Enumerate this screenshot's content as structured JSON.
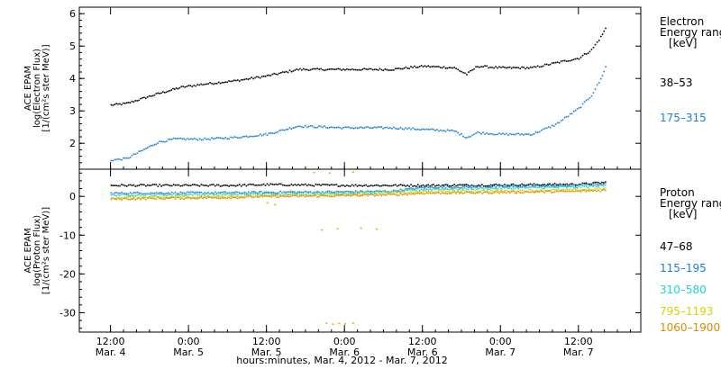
{
  "chart_data": [
    {
      "type": "scatter",
      "ylabel_lines": [
        "ACE EPAM",
        "log(Electron Flux)",
        "[1/(cm²s ster MeV)]"
      ],
      "ylim": [
        1.2,
        6.2
      ],
      "yticks": [
        2,
        3,
        4,
        5,
        6
      ],
      "xlim": [
        -0.2,
        3.4
      ],
      "legend": {
        "title_lines": [
          "Electron",
          "Energy range",
          "[keV]"
        ],
        "entries": [
          "38–53",
          "175–315"
        ]
      },
      "series": [
        {
          "name": "38–53",
          "color": "#000000",
          "points": [
            [
              0.0,
              3.2
            ],
            [
              0.1,
              3.25
            ],
            [
              0.2,
              3.4
            ],
            [
              0.3,
              3.55
            ],
            [
              0.45,
              3.75
            ],
            [
              0.6,
              3.85
            ],
            [
              0.8,
              3.95
            ],
            [
              1.0,
              4.1
            ],
            [
              1.2,
              4.3
            ],
            [
              1.5,
              4.3
            ],
            [
              1.8,
              4.3
            ],
            [
              2.0,
              4.4
            ],
            [
              2.2,
              4.35
            ],
            [
              2.28,
              4.15
            ],
            [
              2.35,
              4.4
            ],
            [
              2.5,
              4.35
            ],
            [
              2.7,
              4.35
            ],
            [
              2.85,
              4.5
            ],
            [
              3.0,
              4.65
            ],
            [
              3.08,
              4.9
            ],
            [
              3.14,
              5.3
            ],
            [
              3.18,
              5.65
            ]
          ]
        },
        {
          "name": "175–315",
          "color": "#1a7fd4",
          "points": [
            [
              0.0,
              1.5
            ],
            [
              0.1,
              1.55
            ],
            [
              0.2,
              1.8
            ],
            [
              0.3,
              2.05
            ],
            [
              0.4,
              2.15
            ],
            [
              0.6,
              2.15
            ],
            [
              0.8,
              2.2
            ],
            [
              1.0,
              2.3
            ],
            [
              1.2,
              2.55
            ],
            [
              1.5,
              2.5
            ],
            [
              1.8,
              2.5
            ],
            [
              2.0,
              2.45
            ],
            [
              2.2,
              2.4
            ],
            [
              2.28,
              2.2
            ],
            [
              2.35,
              2.35
            ],
            [
              2.5,
              2.3
            ],
            [
              2.7,
              2.3
            ],
            [
              2.85,
              2.6
            ],
            [
              3.0,
              3.1
            ],
            [
              3.08,
              3.5
            ],
            [
              3.14,
              4.0
            ],
            [
              3.18,
              4.5
            ]
          ]
        }
      ]
    },
    {
      "type": "scatter",
      "ylabel_lines": [
        "ACE EPAM",
        "log(Proton Flux)",
        "[1/(cm²s ster MeV)]"
      ],
      "ylim": [
        -35,
        7
      ],
      "yticks": [
        0,
        -10,
        -20,
        -30
      ],
      "xlim": [
        -0.2,
        3.4
      ],
      "xticks": [
        0,
        0.5,
        1,
        1.5,
        2,
        2.5,
        3,
        3.5
      ],
      "xtick_labels": [
        [
          "12:00",
          "Mar. 4"
        ],
        [
          "0:00",
          "Mar. 5"
        ],
        [
          "12:00",
          "Mar. 5"
        ],
        [
          "0:00",
          "Mar. 6"
        ],
        [
          "12:00",
          "Mar. 6"
        ],
        [
          "0:00",
          "Mar. 7"
        ],
        [
          "12:00",
          "Mar. 7"
        ],
        [
          "12:00",
          ""
        ]
      ],
      "xlabel": "hours:minutes, Mar.  4, 2012 - Mar.  7, 2012",
      "legend": {
        "title_lines": [
          "Proton",
          "Energy range",
          "[keV]"
        ],
        "entries": [
          "47–68",
          "115–195",
          "310–580",
          "795–1193",
          "1060–1900"
        ]
      },
      "series": [
        {
          "name": "47–68",
          "color": "#000000",
          "points": [
            [
              0.0,
              3.0
            ],
            [
              0.8,
              3.0
            ],
            [
              1.0,
              3.2
            ],
            [
              1.5,
              3.0
            ],
            [
              2.0,
              3.0
            ],
            [
              2.5,
              3.1
            ],
            [
              3.0,
              3.3
            ],
            [
              3.18,
              3.8
            ]
          ]
        },
        {
          "name": "115–195",
          "color": "#1a7fd4",
          "points": [
            [
              0.0,
              1.0
            ],
            [
              0.8,
              1.1
            ],
            [
              0.95,
              1.2
            ],
            [
              1.4,
              1.3
            ],
            [
              1.8,
              1.5
            ],
            [
              2.0,
              2.5
            ],
            [
              2.5,
              2.7
            ],
            [
              3.0,
              3.0
            ],
            [
              3.18,
              3.5
            ]
          ]
        },
        {
          "name": "310–580",
          "color": "#22d3d3",
          "points": [
            [
              0.0,
              0.5
            ],
            [
              0.8,
              0.7
            ],
            [
              0.95,
              0.8
            ],
            [
              1.4,
              0.9
            ],
            [
              1.8,
              1.3
            ],
            [
              2.0,
              2.0
            ],
            [
              2.5,
              2.3
            ],
            [
              3.0,
              2.6
            ],
            [
              3.18,
              3.0
            ]
          ]
        },
        {
          "name": "795–1193",
          "color": "#d4d400",
          "points": [
            [
              0.0,
              -0.2
            ],
            [
              0.8,
              0.2
            ],
            [
              0.95,
              0.4
            ],
            [
              1.4,
              0.6
            ],
            [
              1.8,
              1.0
            ],
            [
              2.0,
              1.4
            ],
            [
              2.5,
              1.6
            ],
            [
              3.0,
              1.9
            ],
            [
              3.18,
              2.2
            ]
          ]
        },
        {
          "name": "1060–1900",
          "color": "#e08a00",
          "points": [
            [
              0.0,
              -0.5
            ],
            [
              0.8,
              -0.1
            ],
            [
              0.95,
              0.1
            ],
            [
              1.4,
              0.3
            ],
            [
              1.8,
              0.6
            ],
            [
              2.0,
              1.0
            ],
            [
              2.5,
              1.2
            ],
            [
              3.0,
              1.5
            ],
            [
              3.18,
              1.8
            ]
          ]
        }
      ]
    }
  ]
}
